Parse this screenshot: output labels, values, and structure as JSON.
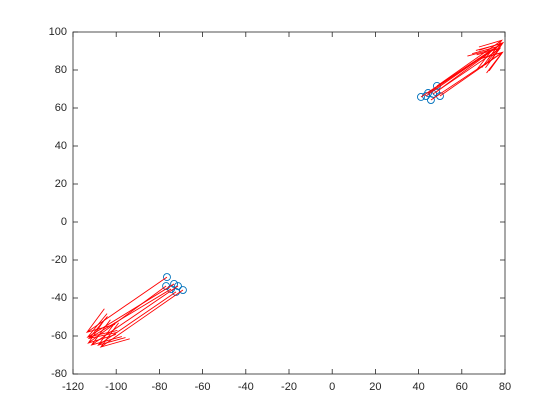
{
  "chart_data": {
    "type": "quiver",
    "x": [
      41.1,
      44.4,
      48.5,
      48.1,
      49.9,
      45.7,
      46.7,
      43.4,
      -76.5,
      -76.9,
      -73.2,
      -72.3,
      -69.1,
      -74.6,
      -71.4
    ],
    "y": [
      65.8,
      67.9,
      71.6,
      68.4,
      66.3,
      64.2,
      67.4,
      66.3,
      -29.0,
      -33.7,
      -32.6,
      -36.8,
      -35.8,
      -35.3,
      -33.7
    ],
    "u": [
      33,
      34,
      30,
      31,
      29,
      33,
      31,
      33,
      -37,
      -36,
      -40,
      -36,
      -38,
      -38,
      -40
    ],
    "v": [
      25,
      26,
      24,
      26,
      23,
      25,
      24,
      26,
      -29,
      -30,
      -28,
      -28,
      -30,
      -26,
      -31
    ],
    "marker_color": "#0072bd",
    "arrow_color": "#ff0000",
    "xlim": [
      -120,
      80
    ],
    "xticks": [
      -120,
      -100,
      -80,
      -60,
      -40,
      -20,
      0,
      20,
      40,
      60,
      80
    ],
    "ylim": [
      -80,
      100
    ],
    "yticks": [
      -80,
      -60,
      -40,
      -20,
      0,
      20,
      40,
      60,
      80,
      100
    ]
  }
}
